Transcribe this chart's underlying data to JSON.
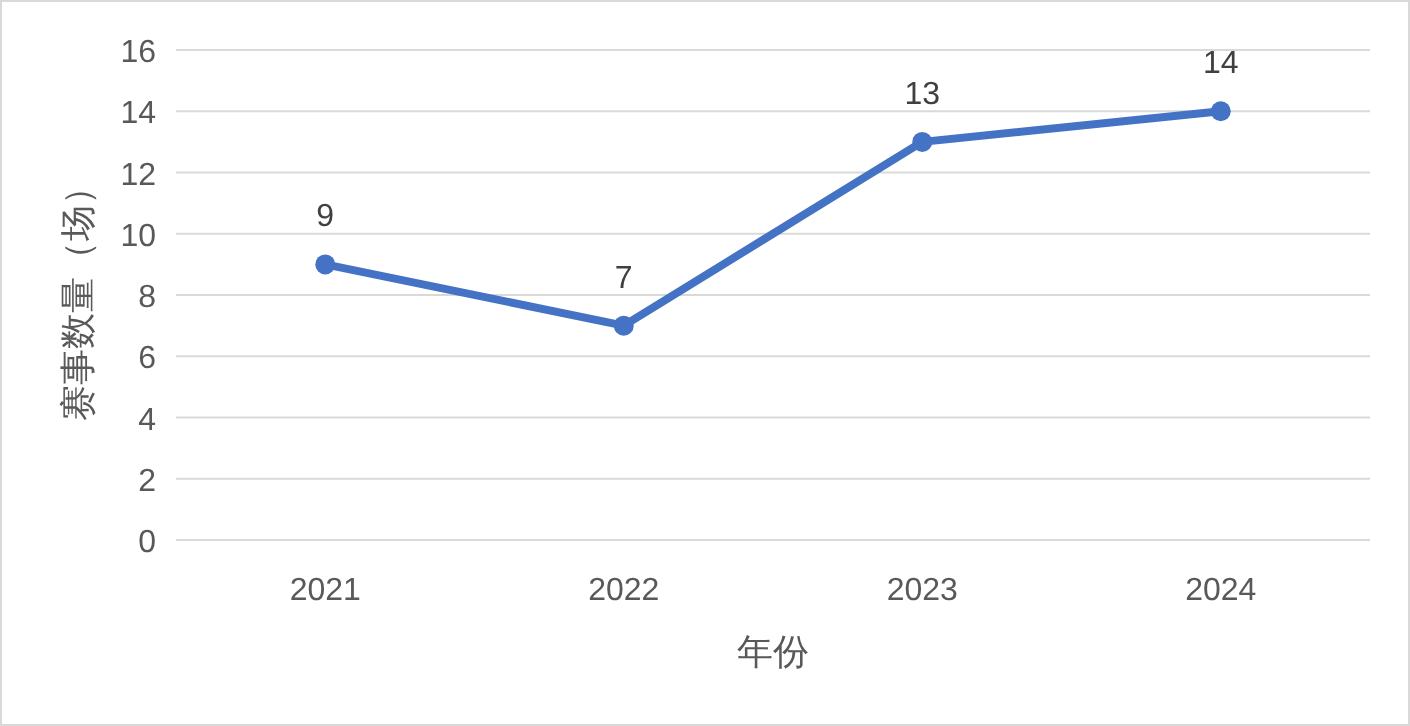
{
  "chart_data": {
    "type": "line",
    "xlabel": "年份",
    "ylabel": "赛事数量（场）",
    "categories": [
      "2021",
      "2022",
      "2023",
      "2024"
    ],
    "series": [
      {
        "color": "#4472c4",
        "values": [
          9,
          7,
          13,
          14
        ]
      }
    ],
    "ylim": [
      0,
      16
    ],
    "yticks": [
      0,
      2,
      4,
      6,
      8,
      10,
      12,
      14,
      16
    ],
    "grid": "y",
    "marker": "circle",
    "line_style": "solid",
    "data_labels": true
  }
}
